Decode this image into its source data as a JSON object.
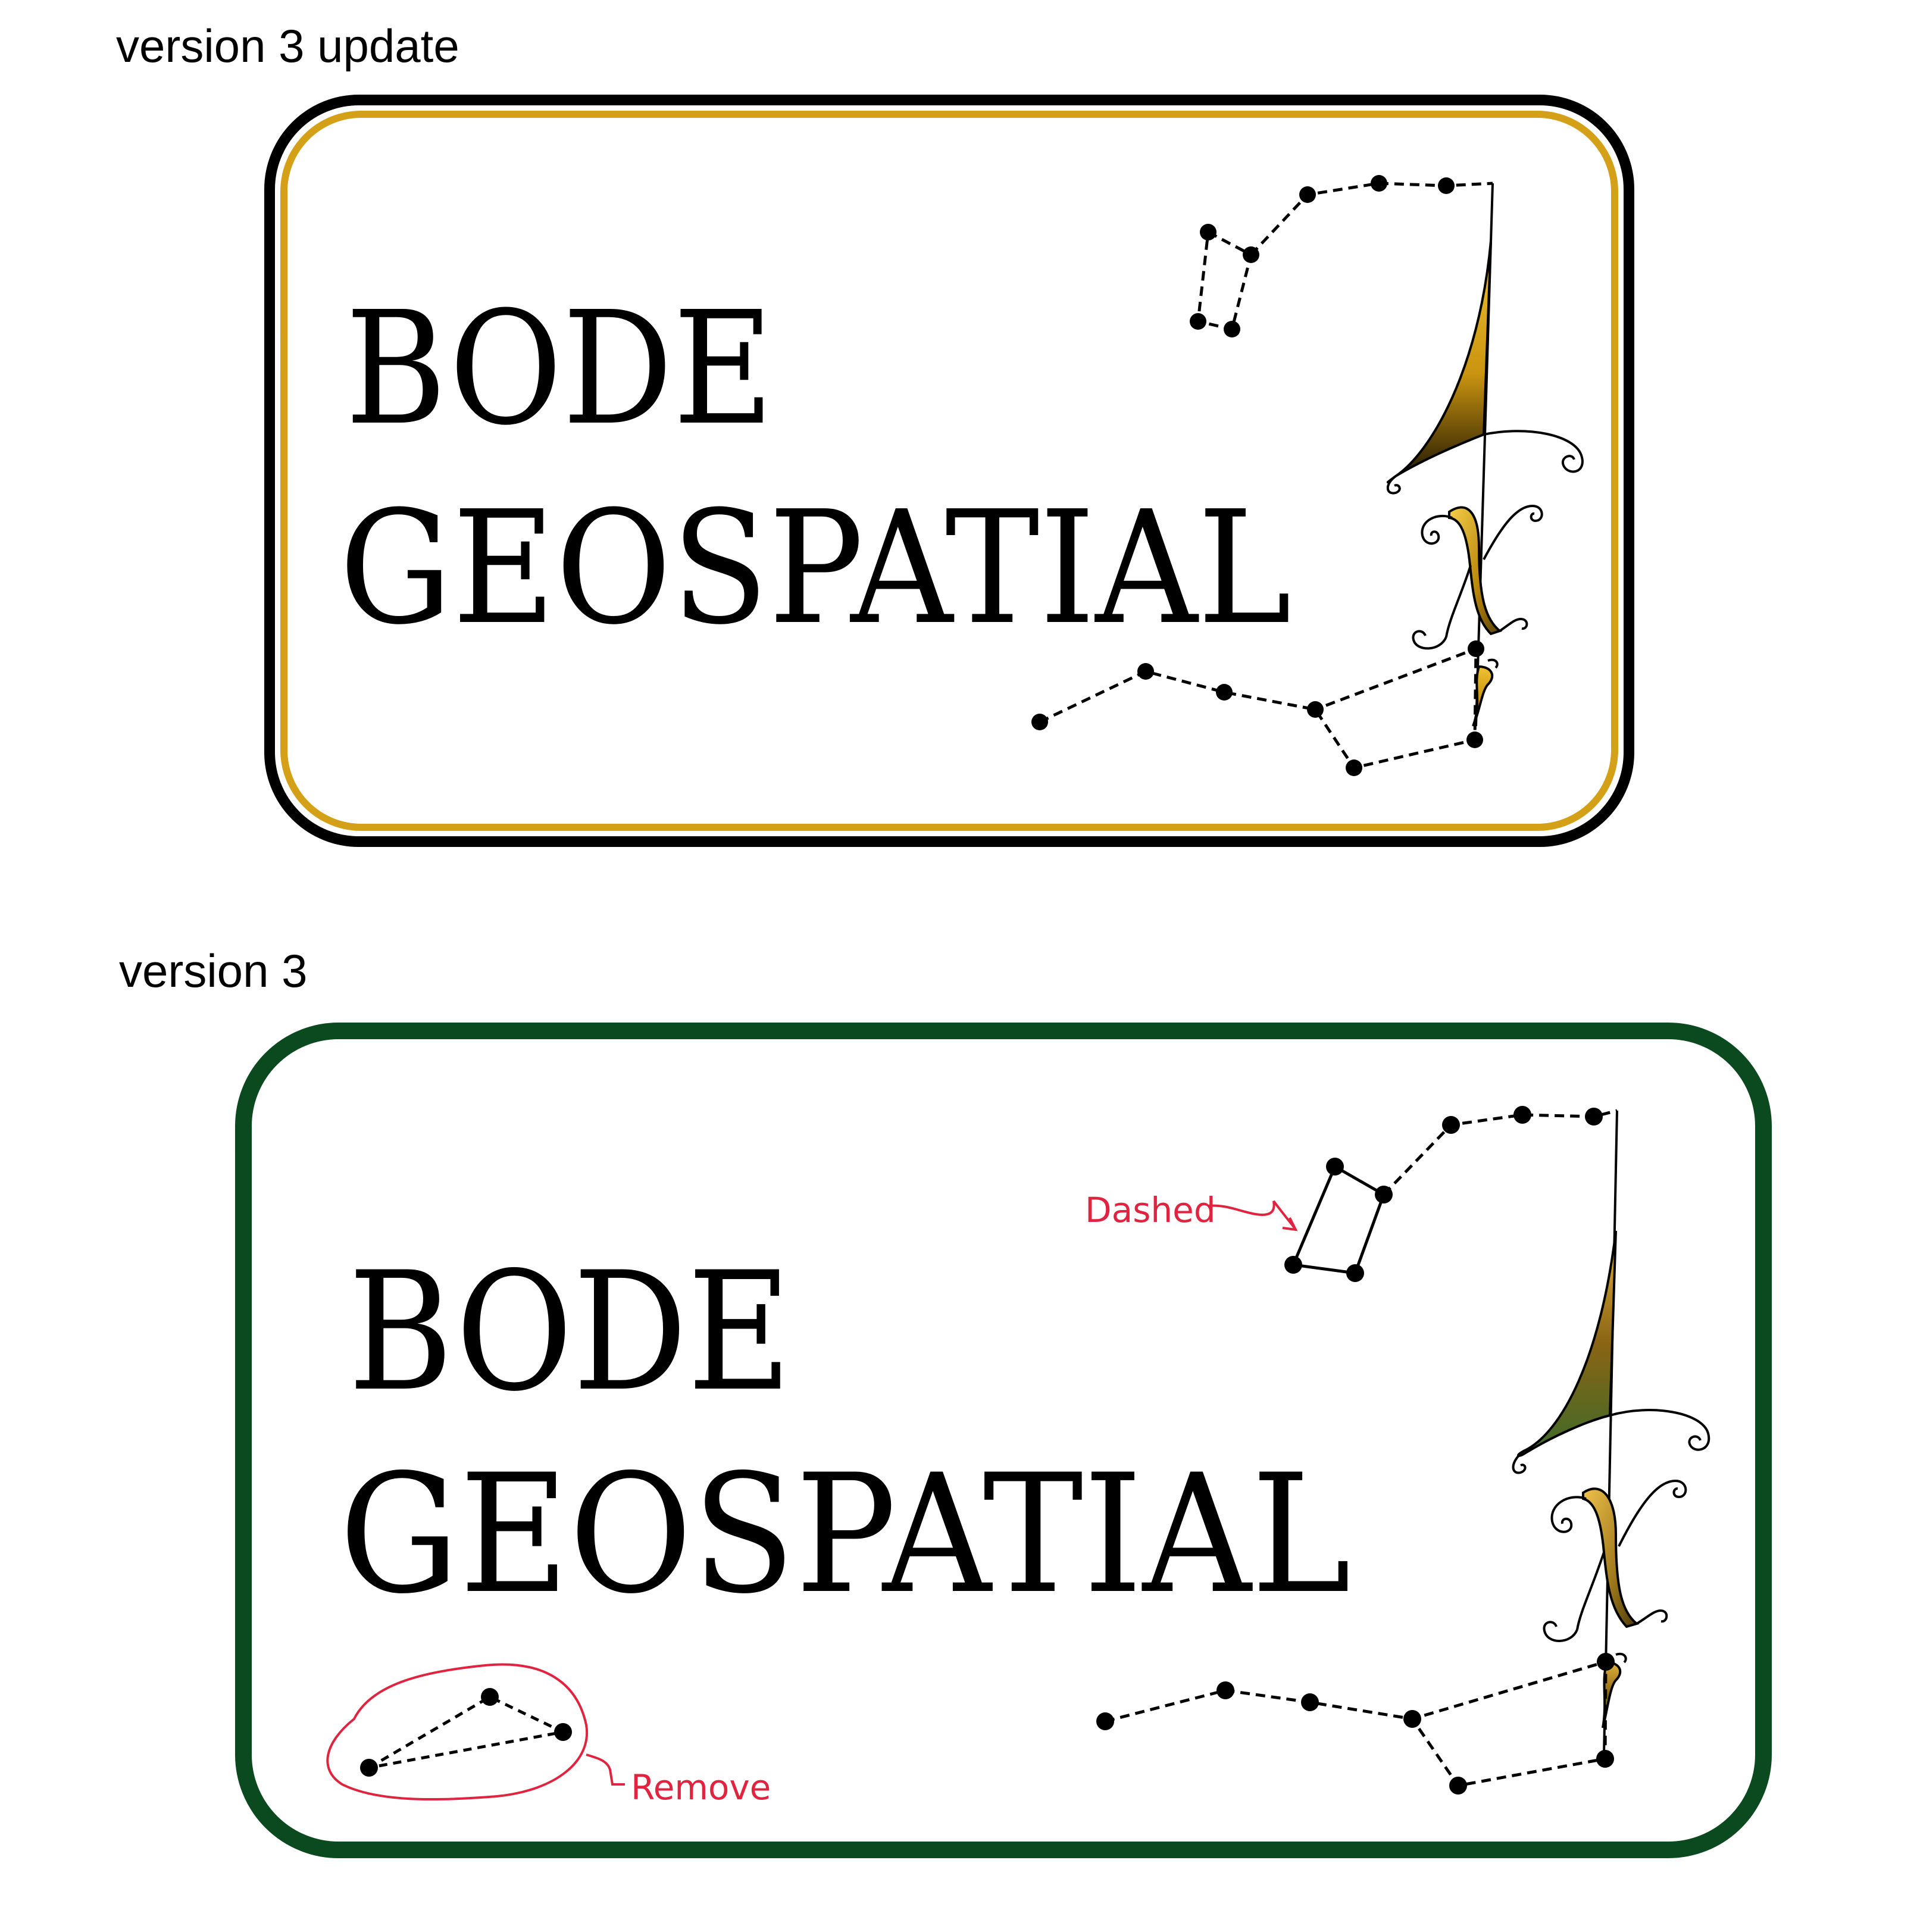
{
  "labels": {
    "top": "version 3 update",
    "bottom": "version 3"
  },
  "logo": {
    "line1": "BODE",
    "line2": "GEOSPATIAL"
  },
  "annotations": {
    "dashed": "Dashed",
    "remove": "Remove"
  },
  "colors": {
    "gold": "#d4a017",
    "gold_dark": "#7a5a0a",
    "frame_black": "#000000",
    "frame_green": "#0b4a1e",
    "annotation_red": "#e0233f",
    "star": "#000000"
  },
  "icons": {
    "emblem": "lambda-compass-icon",
    "constellation": "constellation-icon"
  }
}
